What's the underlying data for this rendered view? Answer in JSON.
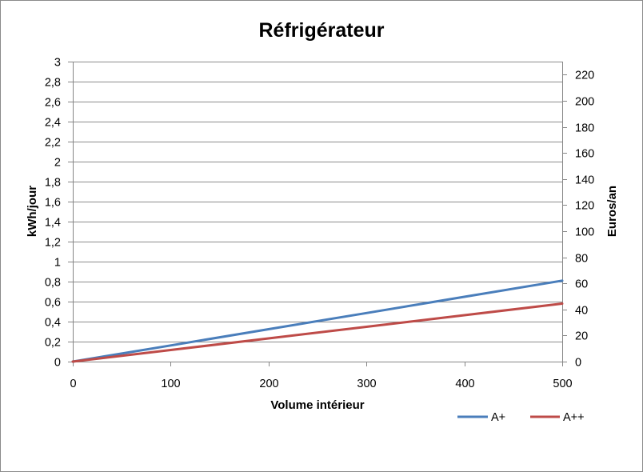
{
  "chart_data": {
    "type": "line",
    "title": "Réfrigérateur",
    "xlabel": "Volume intérieur",
    "ylabel": "kWh/jour",
    "ylabel_right": "Euros/an",
    "x": [
      0,
      100,
      200,
      300,
      400,
      500
    ],
    "xlim": [
      0,
      500
    ],
    "ylim": [
      0,
      3
    ],
    "ylim_right": [
      0,
      230
    ],
    "x_ticks": {
      "values": [
        0,
        100,
        200,
        300,
        400,
        500
      ],
      "labels": [
        "0",
        "100",
        "200",
        "300",
        "400",
        "500"
      ]
    },
    "y_ticks": {
      "values": [
        0,
        0.2,
        0.4,
        0.6,
        0.8,
        1,
        1.2,
        1.4,
        1.6,
        1.8,
        2,
        2.2,
        2.4,
        2.6,
        2.8,
        3
      ],
      "labels": [
        "0",
        "0,2",
        "0,4",
        "0,6",
        "0,8",
        "1",
        "1,2",
        "1,4",
        "1,6",
        "1,8",
        "2",
        "2,2",
        "2,4",
        "2,6",
        "2,8",
        "3"
      ]
    },
    "y_right_ticks": {
      "values": [
        0,
        20,
        40,
        60,
        80,
        100,
        120,
        140,
        160,
        180,
        200,
        220
      ],
      "labels": [
        "0",
        "20",
        "40",
        "60",
        "80",
        "100",
        "120",
        "140",
        "160",
        "180",
        "200",
        "220"
      ]
    },
    "series": [
      {
        "name": "A+",
        "color": "#4A7EBB",
        "values": [
          0,
          0.162,
          0.324,
          0.486,
          0.648,
          0.81
        ]
      },
      {
        "name": "A++",
        "color": "#BE4B48",
        "values": [
          0,
          0.116,
          0.232,
          0.348,
          0.464,
          0.58
        ]
      }
    ],
    "grid": true,
    "legend": "bottom-right"
  }
}
